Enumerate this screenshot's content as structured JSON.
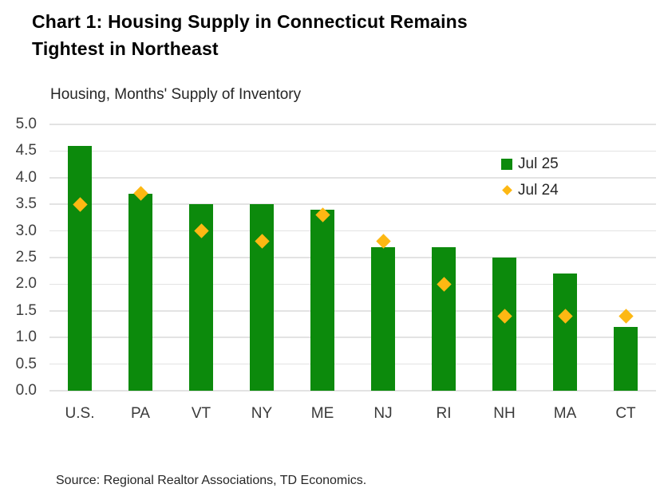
{
  "title": {
    "lines": [
      "Chart 1: Housing Supply in Connecticut Remains",
      "Tightest in Northeast"
    ]
  },
  "chart_data": {
    "type": "bar",
    "title": "Housing, Months' Supply of Inventory",
    "categories": [
      "U.S.",
      "PA",
      "VT",
      "NY",
      "ME",
      "NJ",
      "RI",
      "NH",
      "MA",
      "CT"
    ],
    "series": [
      {
        "name": "Jul 25",
        "marker": "bar",
        "color": "#0C8A0C",
        "values": [
          4.6,
          3.7,
          3.5,
          3.5,
          3.4,
          2.7,
          2.7,
          2.5,
          2.2,
          1.2
        ]
      },
      {
        "name": "Jul 24",
        "marker": "diamond",
        "color": "#FDB813",
        "values": [
          3.5,
          3.7,
          3.0,
          2.8,
          3.3,
          2.8,
          2.0,
          1.4,
          1.4,
          1.4
        ]
      }
    ],
    "xlabel": "",
    "ylabel": "",
    "ylim": [
      0.0,
      5.0
    ],
    "ytick_step": 0.5,
    "yticks": [
      "5.0",
      "4.5",
      "4.0",
      "3.5",
      "3.0",
      "2.5",
      "2.0",
      "1.5",
      "1.0",
      "0.5",
      "0.0"
    ],
    "grid": "horizontal",
    "gridline_color": "#e3e3e3",
    "legend_position": "inside-top-right"
  },
  "source_note": "Source: Regional Realtor Associations, TD Economics."
}
